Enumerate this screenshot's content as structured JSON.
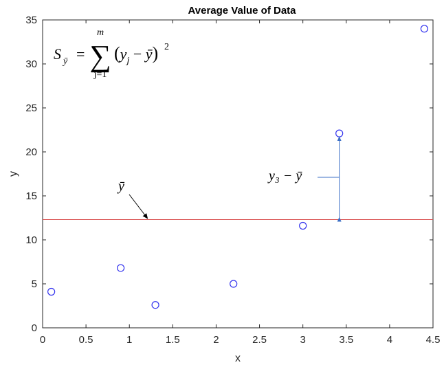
{
  "chart_data": {
    "type": "scatter",
    "title": "Average Value of Data",
    "xlabel": "x",
    "ylabel": "y",
    "xlim": [
      0,
      4.5
    ],
    "ylim": [
      0,
      35
    ],
    "x_ticks": [
      "0",
      "0.5",
      "1",
      "1.5",
      "2",
      "2.5",
      "3",
      "3.5",
      "4",
      "4.5"
    ],
    "y_ticks": [
      "0",
      "5",
      "10",
      "15",
      "20",
      "25",
      "30",
      "35"
    ],
    "grid": false,
    "series": [
      {
        "marker": "circle",
        "color": "#3333ee",
        "points": [
          {
            "x": 0.1,
            "y": 4.1
          },
          {
            "x": 0.9,
            "y": 6.8
          },
          {
            "x": 1.3,
            "y": 2.6
          },
          {
            "x": 2.2,
            "y": 5.0
          },
          {
            "x": 3.0,
            "y": 11.6
          },
          {
            "x": 3.42,
            "y": 22.1
          },
          {
            "x": 4.4,
            "y": 34.0
          }
        ]
      }
    ],
    "mean_line": {
      "y": 12.3,
      "color": "#d95050"
    },
    "annotations": {
      "formula": {
        "s_label": "S",
        "sum_top": "m",
        "sum_bottom": "j=1",
        "exponent": "2"
      },
      "ybar_label": "ȳ",
      "residual_label": "y₃ − ȳ",
      "arrow_color": "#3b6fc6",
      "residual_from": {
        "x": 3.42,
        "y": 12.3
      },
      "residual_to": {
        "x": 3.42,
        "y": 22.1
      }
    }
  }
}
